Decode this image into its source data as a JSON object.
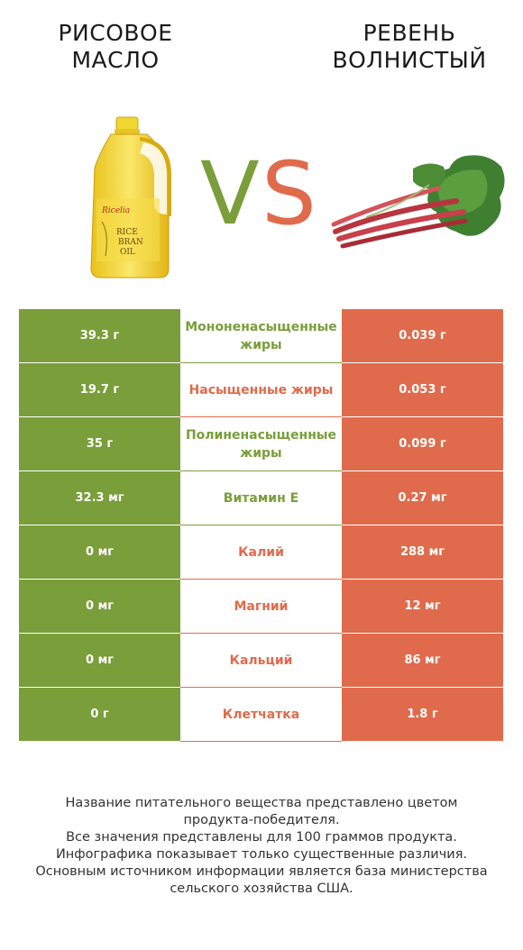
{
  "header": {
    "left_title_line1": "Рисовое",
    "left_title_line2": "масло",
    "right_title_line1": "Ревень",
    "right_title_line2": "волнистый",
    "vs_v": "V",
    "vs_s": "S"
  },
  "product_label": {
    "brand": "Ricelia",
    "line1": "RICE",
    "line2": "BRAN",
    "line3": "OIL"
  },
  "colors": {
    "left": "#7a9e3a",
    "right": "#e06b4c"
  },
  "rows": [
    {
      "left": "39.3 г",
      "nutrient": "Мононенасыщенные жиры",
      "right": "0.039 г",
      "winner": "left"
    },
    {
      "left": "19.7 г",
      "nutrient": "Насыщенные жиры",
      "right": "0.053 г",
      "winner": "right"
    },
    {
      "left": "35 г",
      "nutrient": "Полиненасыщенные жиры",
      "right": "0.099 г",
      "winner": "left"
    },
    {
      "left": "32.3 мг",
      "nutrient": "Витамин E",
      "right": "0.27 мг",
      "winner": "left"
    },
    {
      "left": "0 мг",
      "nutrient": "Калий",
      "right": "288 мг",
      "winner": "right"
    },
    {
      "left": "0 мг",
      "nutrient": "Магний",
      "right": "12 мг",
      "winner": "right"
    },
    {
      "left": "0 мг",
      "nutrient": "Кальций",
      "right": "86 мг",
      "winner": "right"
    },
    {
      "left": "0 г",
      "nutrient": "Клетчатка",
      "right": "1.8 г",
      "winner": "right"
    }
  ],
  "footer": {
    "line1": "Название питательного вещества представлено цветом",
    "line2": "продукта-победителя.",
    "line3": "Все значения представлены для 100 граммов продукта.",
    "line4": "Инфографика показывает только существенные различия.",
    "line5": "Основным источником информации является база министерства",
    "line6": "сельского хозяйства США."
  }
}
